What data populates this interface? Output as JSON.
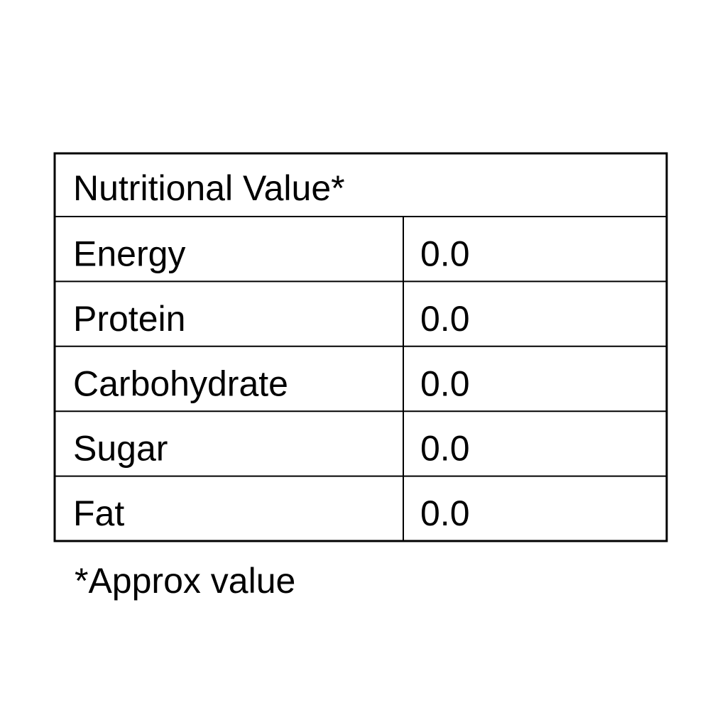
{
  "table": {
    "title": "Nutritional Value*",
    "rows": [
      [
        "Energy",
        "0.0"
      ],
      [
        "Protein",
        "0.0"
      ],
      [
        "Carbohydrate",
        "0.0"
      ],
      [
        "Sugar",
        "0.0"
      ],
      [
        "Fat",
        "0.0"
      ]
    ]
  },
  "footnote": "*Approx value"
}
